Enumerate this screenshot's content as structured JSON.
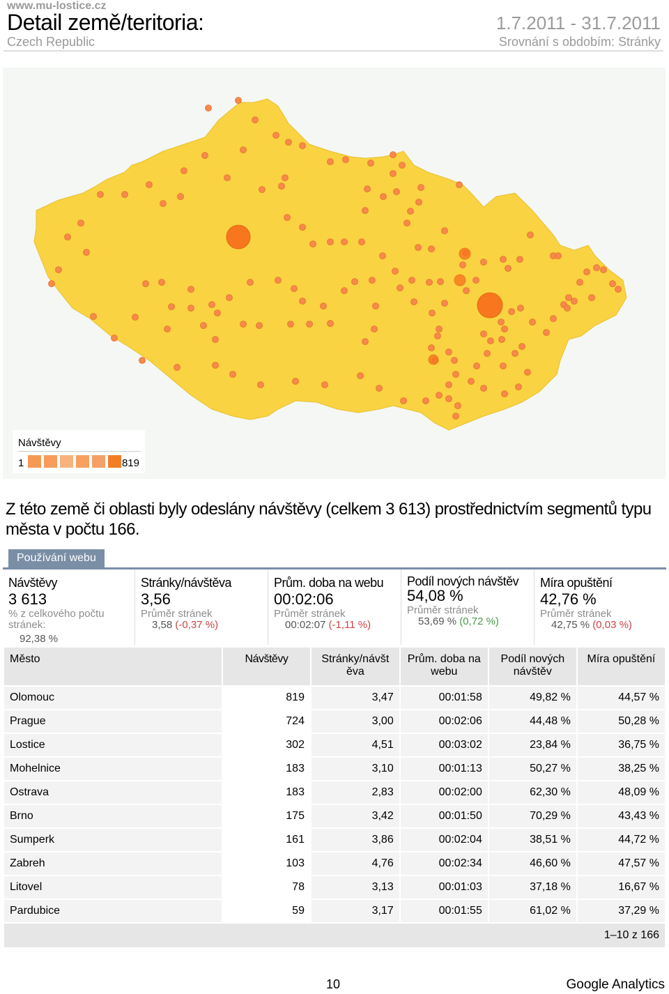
{
  "header": {
    "site": "www.mu-lostice.cz",
    "title": "Detail země/teritoria:",
    "date_range": "1.7.2011 - 31.7.2011",
    "country": "Czech Republic",
    "comparison": "Srovnání s obdobím: Stránky"
  },
  "map": {
    "legend_title": "Návštěvy",
    "legend_min": "1",
    "legend_max": "819",
    "colors": {
      "land": "#f9d342",
      "dot": "#f58a4a",
      "dot_large": "#f7761e",
      "legend": [
        "#f59a55",
        "#f79c5c",
        "#f8b27d",
        "#f7a05f",
        "#f5a066",
        "#f27d25"
      ]
    }
  },
  "summary": "Z této země či oblasti byly odeslány návštěvy (celkem 3 613) prostřednictvím segmentů typu města v počtu 166.",
  "tab": "Používání webu",
  "metrics": [
    {
      "name": "Návštěvy",
      "value": "3 613",
      "sub": "% z celkového počtu stránek:",
      "ref": "92,38 %",
      "delta": ""
    },
    {
      "name": "Stránky/návštěva",
      "value": "3,56",
      "sub": "Průměr stránek",
      "ref": "3,58",
      "delta": "(-0,37 %)"
    },
    {
      "name": "Prům. doba na webu",
      "value": "00:02:06",
      "sub": "Průměr stránek",
      "ref": "00:02:07",
      "delta": "(-1,11 %)"
    },
    {
      "name": "Podíl nových návštěv",
      "value": "54,08 %",
      "sub": "Průměr stránek",
      "ref": "53,69 %",
      "delta": "(0,72 %)"
    },
    {
      "name": "Míra opuštění",
      "value": "42,76 %",
      "sub": "Průměr stránek",
      "ref": "42,75 %",
      "delta": "(0,03 %)"
    }
  ],
  "table": {
    "headers": [
      "Město",
      "Návštěvy",
      "Stránky/návšt ěva",
      "Prům. doba na webu",
      "Podíl nových návštěv",
      "Míra opuštění"
    ],
    "rows": [
      [
        "Olomouc",
        "819",
        "3,47",
        "00:01:58",
        "49,82 %",
        "44,57 %"
      ],
      [
        "Prague",
        "724",
        "3,00",
        "00:02:06",
        "44,48 %",
        "50,28 %"
      ],
      [
        "Lostice",
        "302",
        "4,51",
        "00:03:02",
        "23,84 %",
        "36,75 %"
      ],
      [
        "Mohelnice",
        "183",
        "3,10",
        "00:01:13",
        "50,27 %",
        "38,25 %"
      ],
      [
        "Ostrava",
        "183",
        "2,83",
        "00:02:00",
        "62,30 %",
        "48,09 %"
      ],
      [
        "Brno",
        "175",
        "3,42",
        "00:01:50",
        "70,29 %",
        "43,43 %"
      ],
      [
        "Sumperk",
        "161",
        "3,86",
        "00:02:04",
        "38,51 %",
        "44,72 %"
      ],
      [
        "Zabreh",
        "103",
        "4,76",
        "00:02:34",
        "46,60 %",
        "47,57 %"
      ],
      [
        "Litovel",
        "78",
        "3,13",
        "00:01:03",
        "37,18 %",
        "16,67 %"
      ],
      [
        "Pardubice",
        "59",
        "3,17",
        "00:01:55",
        "61,02 %",
        "37,29 %"
      ]
    ],
    "pagination": "1–10 z 166"
  },
  "footer": {
    "page_number": "10",
    "brand": "Google Analytics"
  }
}
